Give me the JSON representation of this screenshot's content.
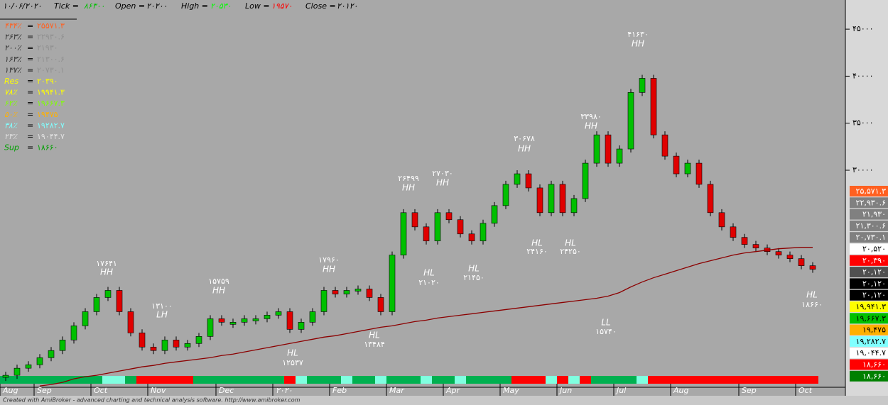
{
  "header": {
    "date": "۱۰/۰۶/۲۰۲۰",
    "tick_label": "Tick =",
    "tick": "۸۶۳۰۰",
    "open_label": "Open =",
    "open": "۲۰۲۰۰",
    "high_label": "High =",
    "high": "۲۰۵۳۰",
    "low_label": "Low =",
    "low": "۱۹۵۷۰",
    "close_label": "Close =",
    "close": "۲۰۱۲۰"
  },
  "levels": [
    {
      "name": "۴۳۴٪",
      "value": "۲۵۵۷۱.۳",
      "color": "#ff6020"
    },
    {
      "name": "۲۶۳٪",
      "value": "۲۲۹۳۰.۶",
      "color": "#909090"
    },
    {
      "name": "۲۰۰٪",
      "value": "۲۱۹۳۰",
      "color": "#909090"
    },
    {
      "name": "۱۶۳٪",
      "value": "۲۱۳۰۰.۶",
      "color": "#909090"
    },
    {
      "name": "۱۳۷٪",
      "value": "۲۰۷۳۰.۱",
      "color": "#909090"
    },
    {
      "name": "Res",
      "value": "۲۰۳۹۰",
      "color": "#ffff00"
    },
    {
      "name": "۷۸٪",
      "value": "۱۹۹۴۱.۳",
      "color": "#ffff00"
    },
    {
      "name": "۶۲٪",
      "value": "۱۹۶۶۷.۳",
      "color": "#80ff00"
    },
    {
      "name": "۵۰٪",
      "value": "۱۹۴۷۵",
      "color": "#ffb000"
    },
    {
      "name": "۳۸٪",
      "value": "۱۹۲۸۲.۷",
      "color": "#80ffff"
    },
    {
      "name": "۲۳٪",
      "value": "۱۹۰۴۴.۷",
      "color": "#e0e0e0"
    },
    {
      "name": "Sup",
      "value": "۱۸۶۶۰",
      "color": "#00a000"
    }
  ],
  "price_boxes": [
    {
      "label": "۲۵,۵۷۱.۳",
      "color": "#ff6020"
    },
    {
      "label": "۲۲,۹۳۰.۶",
      "color": "#808080"
    },
    {
      "label": "۲۱,۹۳۰",
      "color": "#808080"
    },
    {
      "label": "۲۱,۳۰۰.۶",
      "color": "#808080"
    },
    {
      "label": "۲۰,۷۳۰.۱",
      "color": "#808080"
    },
    {
      "label": "۲۰,۵۲۰",
      "color": "#ffffff"
    },
    {
      "label": "۲۰,۳۹۰",
      "color": "#ff0000"
    },
    {
      "label": "۲۰,۱۲۰",
      "color": "#505050"
    },
    {
      "label": "۲۰,۱۲۰",
      "color": "#000000"
    },
    {
      "label": "۲۰,۱۲۰",
      "color": "#000000"
    },
    {
      "label": "۱۹,۹۴۱.۳",
      "color": "#ffff00"
    },
    {
      "label": "۱۹,۶۶۷.۳",
      "color": "#00c000"
    },
    {
      "label": "۱۹,۴۷۵",
      "color": "#ffb000"
    },
    {
      "label": "۱۹,۲۸۲.۷",
      "color": "#80ffff"
    },
    {
      "label": "۱۹,۰۴۴.۷",
      "color": "#ffffff"
    },
    {
      "label": "۱۸,۶۶۰",
      "color": "#ff0000"
    },
    {
      "label": "۱۸,۶۶۰",
      "color": "#008000"
    }
  ],
  "annotations": [
    {
      "value": "۱۷۶۴۱",
      "tag": "HH"
    },
    {
      "value": "۱۳۱۰۰",
      "tag": "LH"
    },
    {
      "value": "۱۵۷۵۹",
      "tag": "HH"
    },
    {
      "value": "۱۷۹۶۰",
      "tag": "HH"
    },
    {
      "value": "۲۶۴۹۹",
      "tag": "HH"
    },
    {
      "value": "۲۷۰۳۰",
      "tag": "HH"
    },
    {
      "value": "۳۰۶۷۸",
      "tag": "HH"
    },
    {
      "value": "۳۳۹۸۰",
      "tag": "HH"
    },
    {
      "value": "۴۱۶۳۰",
      "tag": "HH"
    },
    {
      "value": "۱۲۵۳۷",
      "tag": "HL"
    },
    {
      "value": "۱۳۴۸۴",
      "tag": "HL"
    },
    {
      "value": "۲۱۰۲۰",
      "tag": "HL"
    },
    {
      "value": "۲۱۴۵۰",
      "tag": "HL"
    },
    {
      "value": "۲۴۱۶۰",
      "tag": "HL"
    },
    {
      "value": "۲۴۲۵۰",
      "tag": "HL"
    },
    {
      "value": "۱۵۷۴۰",
      "tag": "LL"
    },
    {
      "value": "۱۸۶۶۰",
      "tag": "HL"
    }
  ],
  "footer": "Created with AmiBroker - advanced charting and technical analysis software. http://www.amibroker.com",
  "chart_data": {
    "type": "candlestick",
    "categories": [
      "Aug",
      null,
      null,
      "Sep",
      null,
      null,
      null,
      null,
      "Oct",
      null,
      null,
      null,
      null,
      "Nov",
      null,
      null,
      null,
      null,
      null,
      "Dec",
      null,
      null,
      null,
      null,
      "۲۰۲۰",
      null,
      null,
      null,
      null,
      "Feb",
      null,
      null,
      null,
      null,
      "Mar",
      null,
      null,
      null,
      null,
      "Apr",
      null,
      null,
      null,
      null,
      "May",
      null,
      null,
      null,
      null,
      "Jun",
      null,
      null,
      null,
      null,
      "Jul",
      null,
      null,
      null,
      null,
      "Aug",
      null,
      null,
      null,
      null,
      null,
      "Sep",
      null,
      null,
      null,
      null,
      "Oct",
      null
    ],
    "series": [
      {
        "color": "#00c000",
        "values": [
          8200,
          8950,
          9320,
          10070,
          10830,
          11950,
          13460,
          14960,
          16470,
          17220,
          14960,
          12710,
          11200,
          10830,
          11950,
          11200,
          11580,
          12330,
          14210,
          13840,
          13840,
          14210,
          14210,
          14590,
          14960,
          13080,
          13840,
          14960,
          17220,
          16840,
          17220,
          17370,
          16470,
          14960,
          20980,
          25490,
          23980,
          22480,
          25490,
          24740,
          23230,
          22480,
          24360,
          26240,
          28500,
          29620,
          28120,
          25490,
          28500,
          25490,
          26990,
          30750,
          33760,
          30750,
          32260,
          38270,
          39770,
          33760,
          31500,
          29620,
          30750,
          28500,
          25490,
          23980,
          22860,
          22110,
          21730,
          21350,
          20980,
          20600,
          19850,
          19470
        ]
      },
      {
        "color": "#8b0000",
        "values": [
          null,
          null,
          null,
          7067,
          7218,
          7443,
          7819,
          8045,
          8195,
          8420,
          8646,
          8872,
          9097,
          9248,
          9473,
          9624,
          9774,
          9924,
          10075,
          10300,
          10451,
          10676,
          10902,
          11127,
          11353,
          11578,
          11804,
          12030,
          12255,
          12406,
          12631,
          12857,
          13082,
          13308,
          13458,
          13684,
          13909,
          14060,
          14285,
          14436,
          14586,
          14736,
          14887,
          15037,
          15188,
          15338,
          15488,
          15639,
          15789,
          15940,
          16090,
          16240,
          16391,
          16616,
          16992,
          17594,
          18120,
          18571,
          18947,
          19323,
          19699,
          20075,
          20376,
          20676,
          20977,
          21203,
          21353,
          21504,
          21654,
          21729,
          21804,
          21804
        ]
      }
    ],
    "ylim": [
      7000,
      48100
    ],
    "yticks": [
      {
        "value": 45000,
        "label": "۴۵۰۰۰"
      },
      {
        "value": 40000,
        "label": "۴۰۰۰۰"
      },
      {
        "value": 35000,
        "label": "۳۵۰۰۰"
      },
      {
        "value": 30000,
        "label": "۳۰۰۰۰"
      }
    ],
    "grid": false
  }
}
